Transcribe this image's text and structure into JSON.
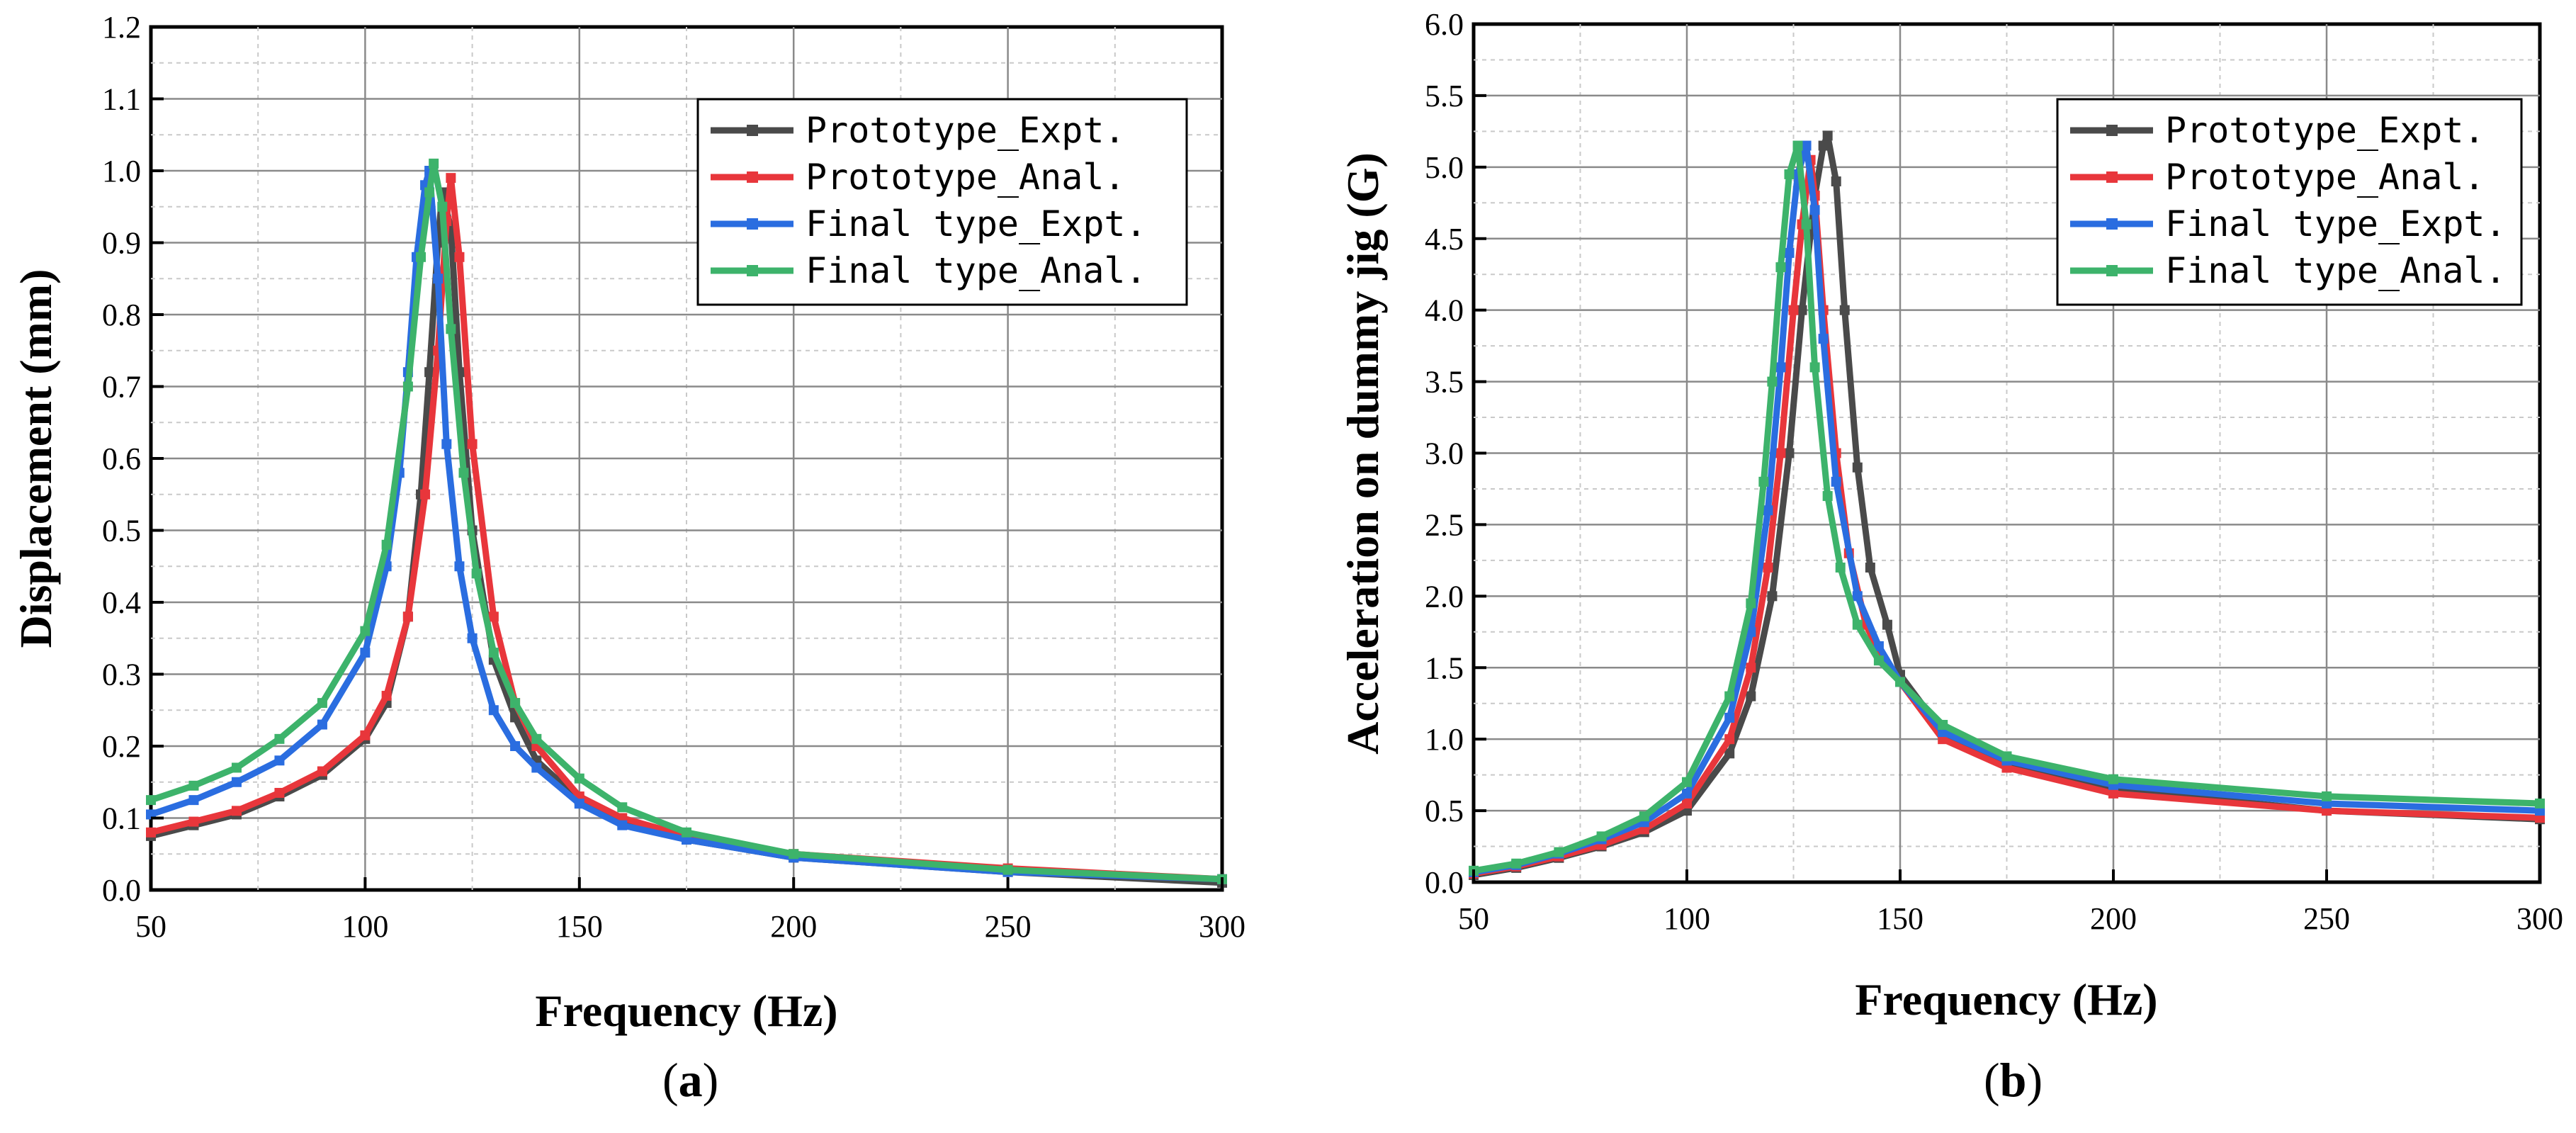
{
  "figure": {
    "labels": [
      "a",
      "b"
    ]
  },
  "colors": {
    "Prototype_Expt.": "#4a4a4a",
    "Prototype_Anal.": "#e8363b",
    "Final type_Expt.": "#2a6de0",
    "Final type_Anal.": "#3db36b"
  },
  "chart_data": [
    {
      "id": "a",
      "type": "line",
      "xlabel": "Frequency (Hz)",
      "ylabel": "Displacement (mm)",
      "xlim": [
        50,
        300
      ],
      "ylim": [
        0,
        1.2
      ],
      "xticks": [
        50,
        100,
        150,
        200,
        250,
        300
      ],
      "yticks": [
        0.0,
        0.1,
        0.2,
        0.3,
        0.4,
        0.5,
        0.6,
        0.7,
        0.8,
        0.9,
        1.0,
        1.1,
        1.2
      ],
      "ytick_labels": [
        "0.0",
        "0.1",
        "0.2",
        "0.3",
        "0.4",
        "0.5",
        "0.6",
        "0.7",
        "0.8",
        "0.9",
        "1.0",
        "1.1",
        "1.2"
      ],
      "grid": true,
      "legend": "top-right",
      "series": [
        {
          "name": "Prototype_Expt.",
          "x": [
            50,
            60,
            70,
            80,
            90,
            100,
            105,
            110,
            113,
            115,
            117,
            118,
            120,
            122,
            125,
            130,
            135,
            140,
            150,
            160,
            175,
            200,
            250,
            300
          ],
          "y": [
            0.075,
            0.09,
            0.105,
            0.13,
            0.16,
            0.21,
            0.26,
            0.38,
            0.55,
            0.72,
            0.9,
            0.97,
            0.92,
            0.72,
            0.5,
            0.32,
            0.24,
            0.18,
            0.125,
            0.095,
            0.07,
            0.045,
            0.025,
            0.01
          ]
        },
        {
          "name": "Prototype_Anal.",
          "x": [
            50,
            60,
            70,
            80,
            90,
            100,
            105,
            110,
            114,
            117,
            119,
            120,
            122,
            125,
            130,
            135,
            140,
            150,
            160,
            175,
            200,
            250,
            300
          ],
          "y": [
            0.08,
            0.095,
            0.11,
            0.135,
            0.165,
            0.215,
            0.27,
            0.38,
            0.55,
            0.75,
            0.93,
            0.99,
            0.88,
            0.62,
            0.38,
            0.26,
            0.2,
            0.13,
            0.1,
            0.075,
            0.05,
            0.03,
            0.015
          ]
        },
        {
          "name": "Final type_Expt.",
          "x": [
            50,
            60,
            70,
            80,
            90,
            100,
            105,
            108,
            110,
            112,
            114,
            115,
            117,
            119,
            122,
            125,
            130,
            135,
            140,
            150,
            160,
            175,
            200,
            250,
            300
          ],
          "y": [
            0.105,
            0.125,
            0.15,
            0.18,
            0.23,
            0.33,
            0.45,
            0.58,
            0.72,
            0.88,
            0.98,
            1.0,
            0.85,
            0.62,
            0.45,
            0.35,
            0.25,
            0.2,
            0.17,
            0.12,
            0.09,
            0.07,
            0.045,
            0.025,
            0.015
          ]
        },
        {
          "name": "Final type_Anal.",
          "x": [
            50,
            60,
            70,
            80,
            90,
            100,
            105,
            110,
            113,
            115,
            116,
            118,
            120,
            123,
            126,
            130,
            135,
            140,
            150,
            160,
            175,
            200,
            250,
            300
          ],
          "y": [
            0.125,
            0.145,
            0.17,
            0.21,
            0.26,
            0.36,
            0.48,
            0.7,
            0.88,
            0.97,
            1.01,
            0.95,
            0.78,
            0.58,
            0.44,
            0.33,
            0.26,
            0.21,
            0.155,
            0.115,
            0.08,
            0.05,
            0.028,
            0.015
          ]
        }
      ]
    },
    {
      "id": "b",
      "type": "line",
      "xlabel": "Frequency (Hz)",
      "ylabel": "Acceleration on dummy jig (G)",
      "xlim": [
        50,
        300
      ],
      "ylim": [
        0,
        6
      ],
      "xticks": [
        50,
        100,
        150,
        200,
        250,
        300
      ],
      "yticks": [
        0.0,
        0.5,
        1.0,
        1.5,
        2.0,
        2.5,
        3.0,
        3.5,
        4.0,
        4.5,
        5.0,
        5.5,
        6.0
      ],
      "ytick_labels": [
        "0.0",
        "0.5",
        "1.0",
        "1.5",
        "2.0",
        "2.5",
        "3.0",
        "3.5",
        "4.0",
        "4.5",
        "5.0",
        "5.5",
        "6.0"
      ],
      "grid": true,
      "legend": "top-right",
      "series": [
        {
          "name": "Prototype_Expt.",
          "x": [
            50,
            60,
            70,
            80,
            90,
            100,
            110,
            115,
            120,
            124,
            127,
            130,
            132,
            133,
            135,
            137,
            140,
            143,
            147,
            150,
            160,
            175,
            200,
            250,
            300
          ],
          "y": [
            0.05,
            0.1,
            0.17,
            0.25,
            0.35,
            0.5,
            0.9,
            1.3,
            2.0,
            3.0,
            4.0,
            4.8,
            5.15,
            5.22,
            4.9,
            4.0,
            2.9,
            2.2,
            1.8,
            1.45,
            1.05,
            0.82,
            0.65,
            0.5,
            0.44
          ]
        },
        {
          "name": "Prototype_Anal.",
          "x": [
            50,
            60,
            70,
            80,
            90,
            100,
            110,
            115,
            119,
            122,
            125,
            127,
            129,
            130,
            132,
            135,
            138,
            142,
            146,
            150,
            160,
            175,
            200,
            250,
            300
          ],
          "y": [
            0.06,
            0.11,
            0.18,
            0.26,
            0.37,
            0.55,
            1.0,
            1.5,
            2.2,
            3.0,
            4.0,
            4.6,
            5.05,
            4.8,
            4.0,
            3.0,
            2.3,
            1.8,
            1.55,
            1.4,
            1.0,
            0.8,
            0.62,
            0.5,
            0.45
          ]
        },
        {
          "name": "Final type_Expt.",
          "x": [
            50,
            60,
            70,
            80,
            90,
            100,
            110,
            115,
            119,
            122,
            124,
            126,
            128,
            130,
            132,
            135,
            140,
            145,
            150,
            160,
            175,
            200,
            250,
            300
          ],
          "y": [
            0.07,
            0.12,
            0.2,
            0.3,
            0.42,
            0.62,
            1.15,
            1.75,
            2.6,
            3.6,
            4.4,
            4.95,
            5.15,
            4.7,
            3.8,
            2.8,
            2.0,
            1.65,
            1.4,
            1.05,
            0.85,
            0.68,
            0.55,
            0.5
          ]
        },
        {
          "name": "Final type_Anal.",
          "x": [
            50,
            60,
            70,
            80,
            90,
            100,
            110,
            115,
            118,
            120,
            122,
            124,
            126,
            128,
            130,
            133,
            136,
            140,
            145,
            150,
            160,
            175,
            200,
            250,
            300
          ],
          "y": [
            0.08,
            0.13,
            0.21,
            0.32,
            0.46,
            0.7,
            1.3,
            1.95,
            2.8,
            3.5,
            4.3,
            4.95,
            5.15,
            4.6,
            3.6,
            2.7,
            2.2,
            1.8,
            1.55,
            1.4,
            1.1,
            0.88,
            0.72,
            0.6,
            0.55
          ]
        }
      ]
    }
  ]
}
